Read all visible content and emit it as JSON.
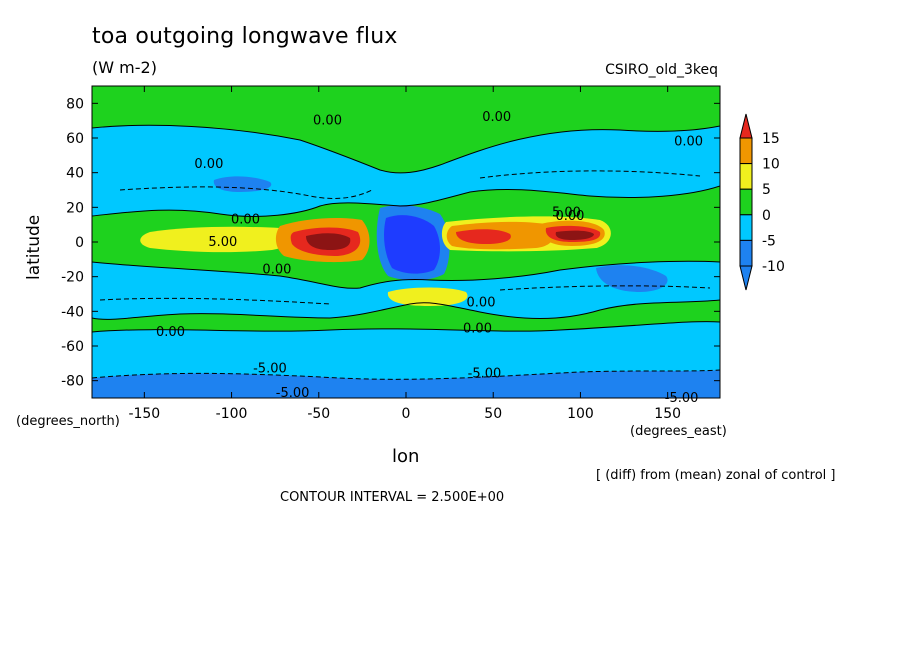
{
  "chart_data": {
    "type": "heatmap",
    "title": "toa outgoing longwave flux",
    "subtitle": "(W m-2)",
    "model_label": "CSIRO_old_3keq",
    "xlabel": "lon",
    "ylabel": "latitude",
    "x_unit": "(degrees_east)",
    "y_unit": "(degrees_north)",
    "xlim": [
      -180,
      180
    ],
    "ylim": [
      -90,
      90
    ],
    "x_ticks": [
      -150,
      -100,
      -50,
      0,
      50,
      100,
      150
    ],
    "y_ticks": [
      80,
      60,
      40,
      20,
      0,
      -20,
      -40,
      -60,
      -80
    ],
    "x_tick_labels": [
      "-150",
      "-100",
      "-50",
      "0",
      "50",
      "100",
      "150"
    ],
    "y_tick_labels": [
      "80",
      "60",
      "40",
      "20",
      "0",
      "-20",
      "-40",
      "-60",
      "-80"
    ],
    "colorbar": {
      "levels": [
        -10,
        -5,
        0,
        5,
        10,
        15
      ],
      "labels": [
        "-10",
        "-5",
        "0",
        "5",
        "10",
        "15"
      ],
      "colors": [
        "#1e82f0",
        "#00c8ff",
        "#1ed21e",
        "#f0f01e",
        "#f09600",
        "#e6281e"
      ],
      "under_color": "#1e3cff",
      "over_color": "#e6281e"
    },
    "contour_labels": [
      {
        "text": "0.00",
        "lon": -45,
        "lat": 70
      },
      {
        "text": "0.00",
        "lon": 52,
        "lat": 72
      },
      {
        "text": "0.00",
        "lon": 162,
        "lat": 58
      },
      {
        "text": "0.00",
        "lon": -113,
        "lat": 45
      },
      {
        "text": "0.00",
        "lon": -92,
        "lat": 13
      },
      {
        "text": "5.00",
        "lon": -105,
        "lat": 0
      },
      {
        "text": "5.00",
        "lon": 92,
        "lat": 17
      },
      {
        "text": "0.00",
        "lon": 94,
        "lat": 15
      },
      {
        "text": "0.00",
        "lon": -74,
        "lat": -16
      },
      {
        "text": "0.00",
        "lon": 43,
        "lat": -35
      },
      {
        "text": "0.00",
        "lon": 41,
        "lat": -50
      },
      {
        "text": "0.00",
        "lon": -135,
        "lat": -52
      },
      {
        "text": "-5.00",
        "lon": -78,
        "lat": -73
      },
      {
        "text": "-5.00",
        "lon": 45,
        "lat": -76
      },
      {
        "text": "-5.00",
        "lon": -65,
        "lat": -87
      },
      {
        "text": "-5.00",
        "lon": 158,
        "lat": -90
      }
    ],
    "contour_interval_text": "CONTOUR INTERVAL = 2.500E+00",
    "grid": false,
    "legend": "right"
  },
  "note": "[ (diff) from (mean) zonal of control ]"
}
